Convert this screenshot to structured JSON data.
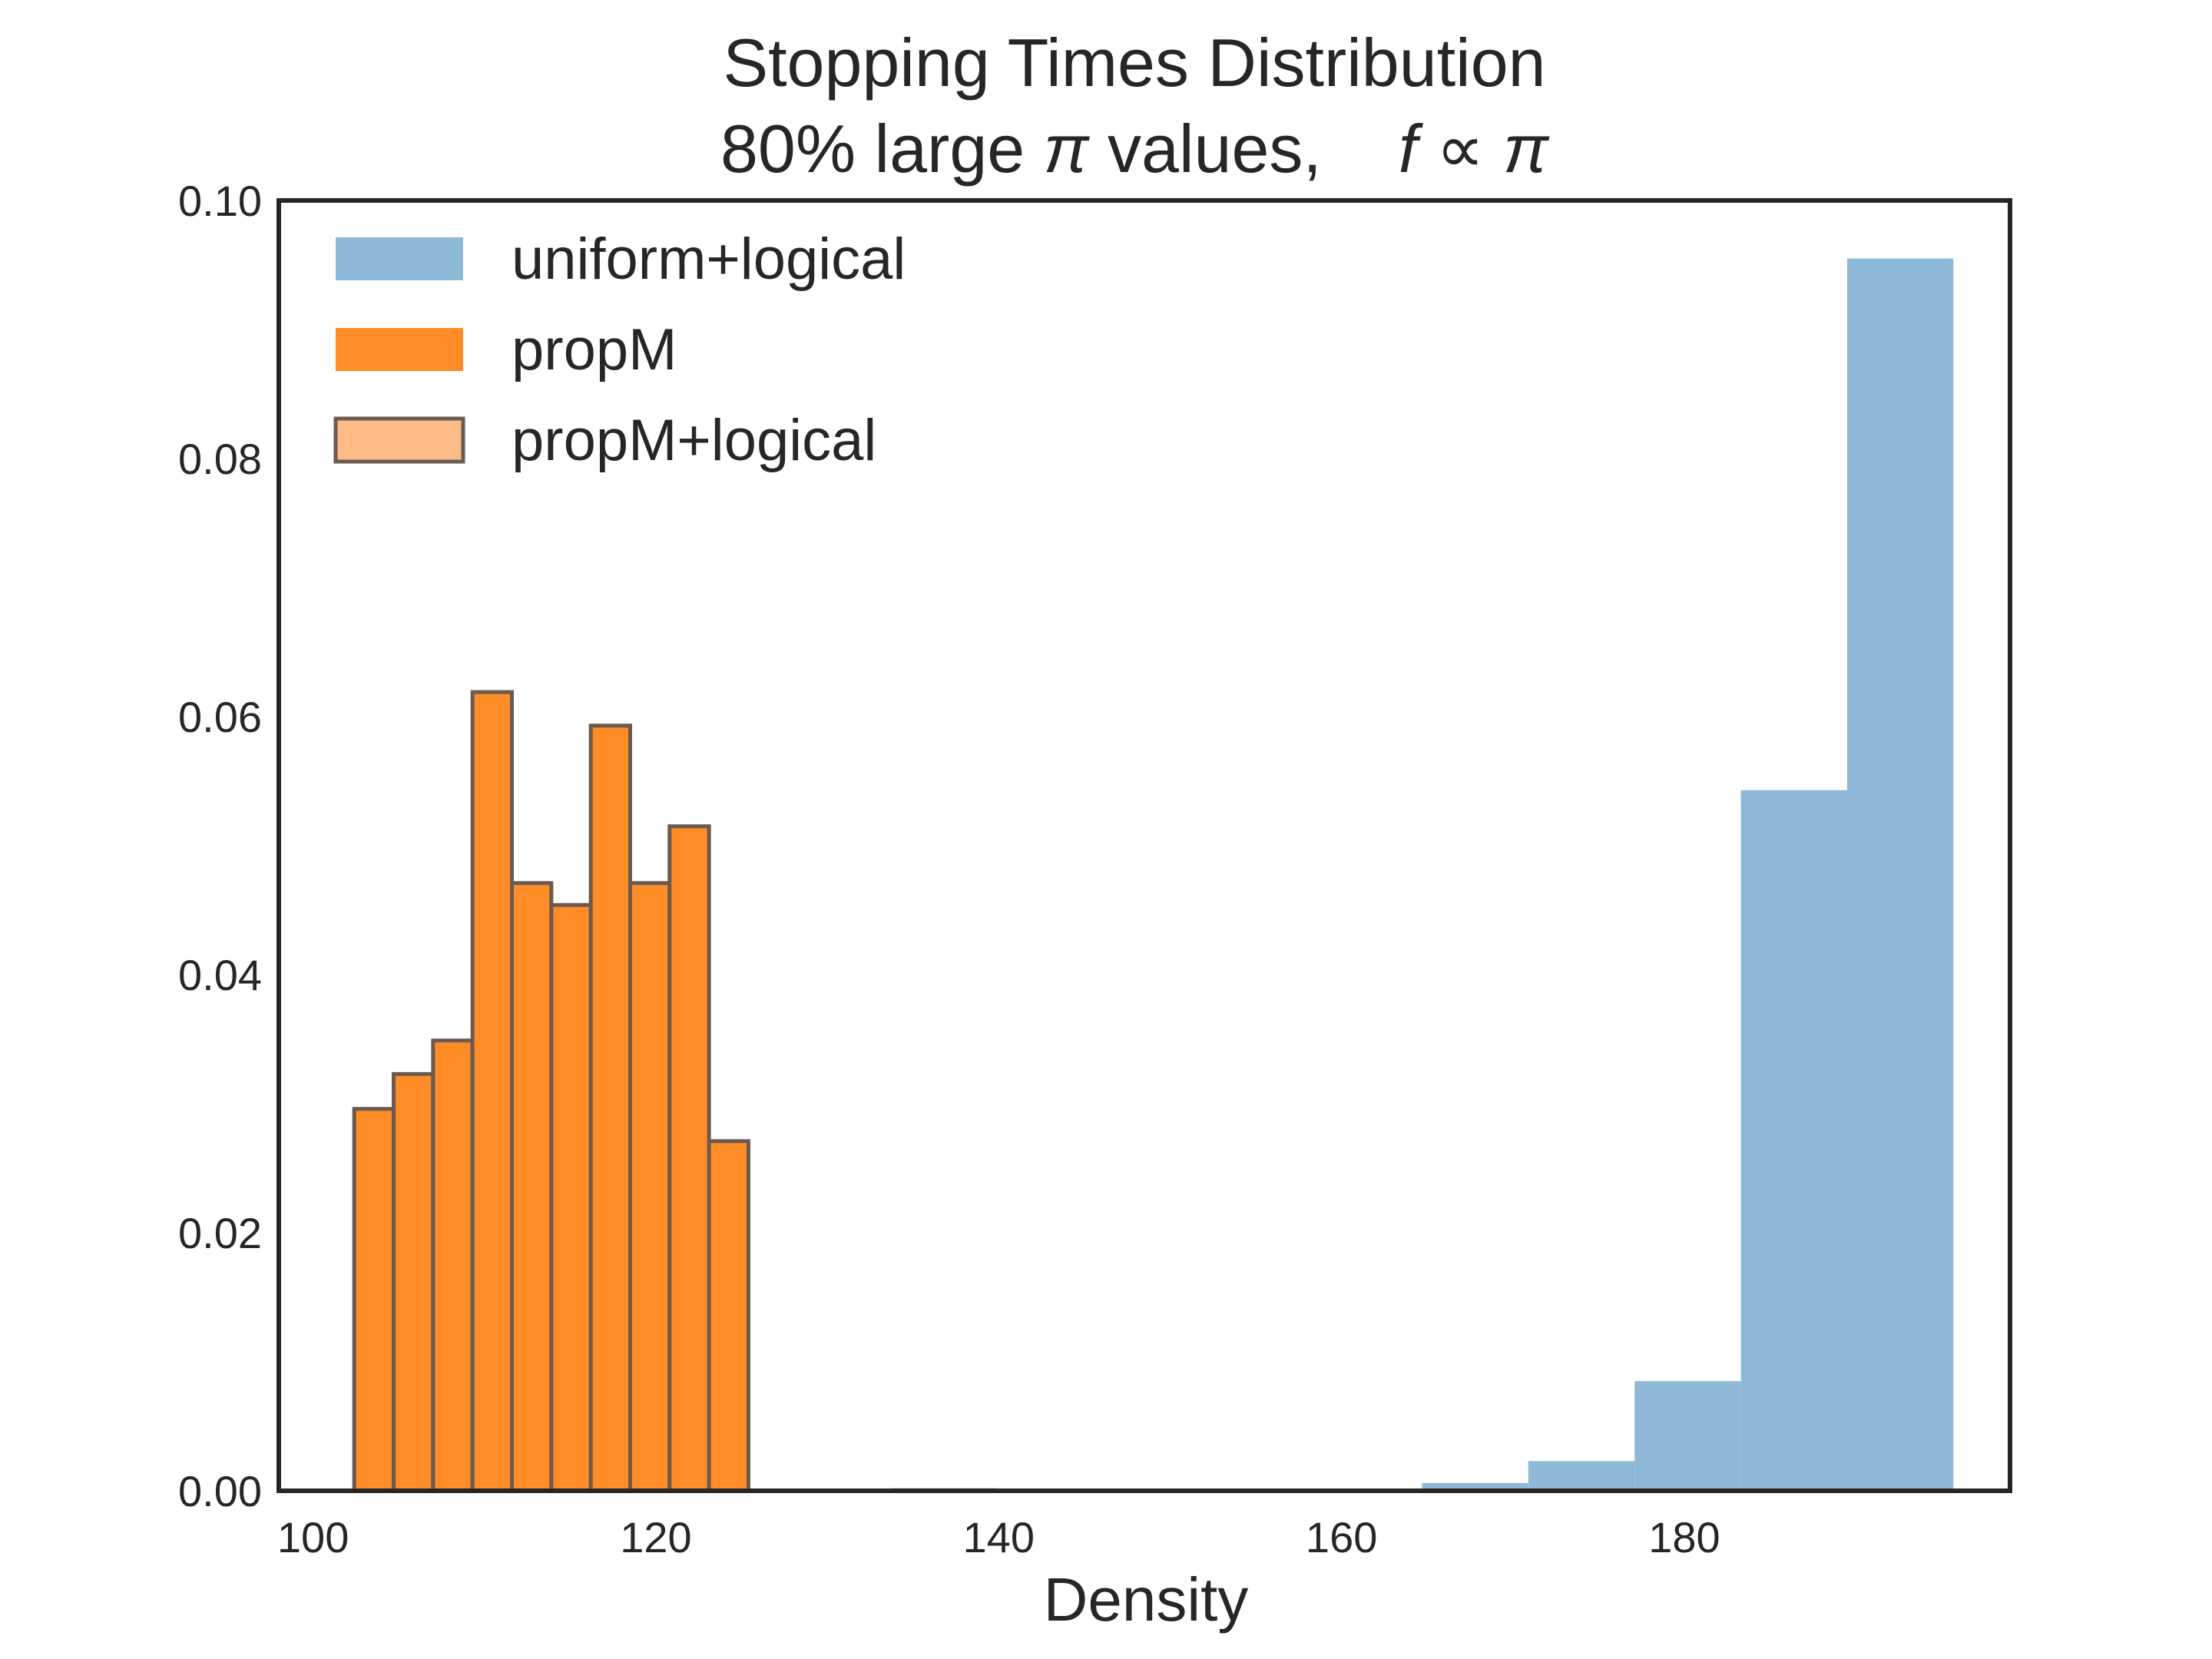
{
  "chart_data": {
    "type": "bar",
    "title": "Stopping Times Distribution",
    "subtitle_parts": {
      "prefix": "80% large ",
      "pi": "π",
      "middle": " values,",
      "f": "f",
      "prop": " ∝ ",
      "pi2": "π"
    },
    "xlabel": "Density",
    "ylabel": "",
    "xlim": [
      98,
      199
    ],
    "ylim": [
      0,
      0.1
    ],
    "xticks": [
      {
        "value": 100,
        "label": "100"
      },
      {
        "value": 120,
        "label": "120"
      },
      {
        "value": 140,
        "label": "140"
      },
      {
        "value": 160,
        "label": "160"
      },
      {
        "value": 180,
        "label": "180"
      }
    ],
    "yticks": [
      {
        "value": 0.0,
        "label": "0.00"
      },
      {
        "value": 0.02,
        "label": "0.02"
      },
      {
        "value": 0.04,
        "label": "0.04"
      },
      {
        "value": 0.06,
        "label": "0.06"
      },
      {
        "value": 0.08,
        "label": "0.08"
      },
      {
        "value": 0.1,
        "label": "0.10"
      }
    ],
    "grid": false,
    "legend_position": "top-left",
    "series": [
      {
        "name": "uniform+logical",
        "color": "#8fb9d8",
        "edgecolor": "",
        "bins": [
          {
            "x0": 133.7,
            "x1": 139.9,
            "value": 0.0002
          },
          {
            "x0": 139.9,
            "x1": 146.1,
            "value": 0.0
          },
          {
            "x0": 146.1,
            "x1": 152.3,
            "value": 0.0
          },
          {
            "x0": 152.3,
            "x1": 158.5,
            "value": 0.0
          },
          {
            "x0": 158.5,
            "x1": 164.7,
            "value": 0.0
          },
          {
            "x0": 164.7,
            "x1": 170.9,
            "value": 0.0006
          },
          {
            "x0": 170.9,
            "x1": 177.1,
            "value": 0.0023
          },
          {
            "x0": 177.1,
            "x1": 183.3,
            "value": 0.0085
          },
          {
            "x0": 183.3,
            "x1": 189.5,
            "value": 0.0543
          },
          {
            "x0": 189.5,
            "x1": 195.7,
            "value": 0.0955
          }
        ]
      },
      {
        "name": "propM",
        "color": "#ff8c26",
        "edgecolor": "",
        "bins": []
      },
      {
        "name": "propM+logical",
        "color": "#ffbb85",
        "edgecolor": "#6b5a50",
        "bins": [
          {
            "x0": 102.4,
            "x1": 104.7,
            "value": 0.0296
          },
          {
            "x0": 104.7,
            "x1": 107.0,
            "value": 0.0323
          },
          {
            "x0": 107.0,
            "x1": 109.3,
            "value": 0.0349
          },
          {
            "x0": 109.3,
            "x1": 111.6,
            "value": 0.0619
          },
          {
            "x0": 111.6,
            "x1": 113.9,
            "value": 0.0471
          },
          {
            "x0": 113.9,
            "x1": 116.2,
            "value": 0.0454
          },
          {
            "x0": 116.2,
            "x1": 118.5,
            "value": 0.0593
          },
          {
            "x0": 118.5,
            "x1": 120.8,
            "value": 0.0471
          },
          {
            "x0": 120.8,
            "x1": 123.1,
            "value": 0.0515
          },
          {
            "x0": 123.1,
            "x1": 125.4,
            "value": 0.0271
          }
        ]
      }
    ],
    "overlap_color": "#ff8c26"
  }
}
